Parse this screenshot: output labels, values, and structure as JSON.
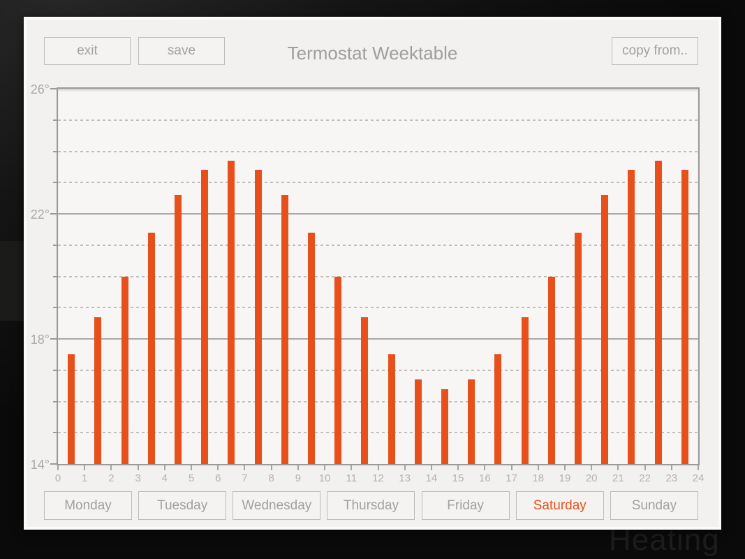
{
  "header": {
    "exit_label": "exit",
    "save_label": "save",
    "title": "Termostat Weektable",
    "copy_from_label": "copy from.."
  },
  "background": {
    "watermark_text": "Heating"
  },
  "chart_data": {
    "type": "bar",
    "title": "Termostat Weektable",
    "categories": [
      0,
      1,
      2,
      3,
      4,
      5,
      6,
      7,
      8,
      9,
      10,
      11,
      12,
      13,
      14,
      15,
      16,
      17,
      18,
      19,
      20,
      21,
      22,
      23
    ],
    "values": [
      17.5,
      18.7,
      20.0,
      21.4,
      22.6,
      23.4,
      23.7,
      23.4,
      22.6,
      21.4,
      20.0,
      18.7,
      17.5,
      16.7,
      16.4,
      16.7,
      17.5,
      18.7,
      20.0,
      21.4,
      22.6,
      23.4,
      23.7,
      23.4
    ],
    "value_unit": "°",
    "ylim": [
      14,
      26
    ],
    "xlim": [
      0,
      24
    ],
    "y_major_ticks": [
      {
        "value": 14,
        "label": "14°"
      },
      {
        "value": 18,
        "label": "18°"
      },
      {
        "value": 22,
        "label": "22°"
      },
      {
        "value": 26,
        "label": "26°"
      }
    ],
    "y_minor_step": 1,
    "x_tick_labels": [
      "0",
      "1",
      "2",
      "3",
      "4",
      "5",
      "6",
      "7",
      "8",
      "9",
      "10",
      "11",
      "12",
      "13",
      "14",
      "15",
      "16",
      "17",
      "18",
      "19",
      "20",
      "21",
      "22",
      "23",
      "24"
    ],
    "grid": "horizontal; solid at major ticks, dashed at minor",
    "legend": "none",
    "bar_color": "#e8501b"
  },
  "day_tabs": {
    "selected": "Saturday",
    "items": [
      "Monday",
      "Tuesday",
      "Wednesday",
      "Thursday",
      "Friday",
      "Saturday",
      "Sunday"
    ]
  },
  "colors": {
    "accent_orange": "#e8511d",
    "bar_orange": "#e8501b",
    "window_background": "#f2f1ef",
    "plot_background": "#f7f6f5",
    "page_background": "#0a0a0a"
  }
}
